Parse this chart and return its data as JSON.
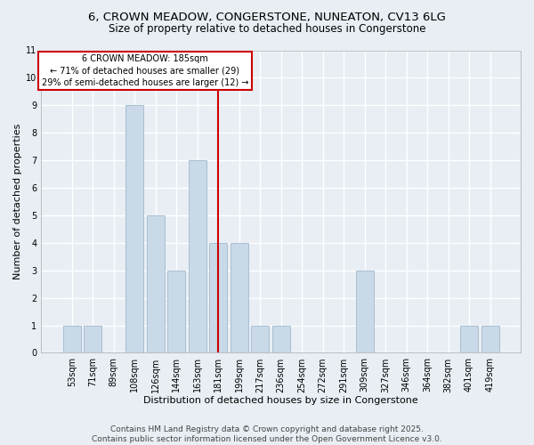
{
  "title1": "6, CROWN MEADOW, CONGERSTONE, NUNEATON, CV13 6LG",
  "title2": "Size of property relative to detached houses in Congerstone",
  "xlabel": "Distribution of detached houses by size in Congerstone",
  "ylabel": "Number of detached properties",
  "categories": [
    "53sqm",
    "71sqm",
    "89sqm",
    "108sqm",
    "126sqm",
    "144sqm",
    "163sqm",
    "181sqm",
    "199sqm",
    "217sqm",
    "236sqm",
    "254sqm",
    "272sqm",
    "291sqm",
    "309sqm",
    "327sqm",
    "346sqm",
    "364sqm",
    "382sqm",
    "401sqm",
    "419sqm"
  ],
  "values": [
    1,
    1,
    0,
    9,
    5,
    3,
    7,
    4,
    4,
    1,
    1,
    0,
    0,
    0,
    3,
    0,
    0,
    0,
    0,
    1,
    1
  ],
  "bar_color": "#c9d9e8",
  "bar_edge_color": "#a0b8cc",
  "highlight_index": 7,
  "highlight_line_color": "#cc0000",
  "annotation_text": "6 CROWN MEADOW: 185sqm\n← 71% of detached houses are smaller (29)\n29% of semi-detached houses are larger (12) →",
  "annotation_box_color": "#ffffff",
  "annotation_box_edge": "#cc0000",
  "ylim": [
    0,
    11
  ],
  "yticks": [
    0,
    1,
    2,
    3,
    4,
    5,
    6,
    7,
    8,
    9,
    10,
    11
  ],
  "bg_color": "#e8eef4",
  "grid_color": "#ffffff",
  "footer": "Contains HM Land Registry data © Crown copyright and database right 2025.\nContains public sector information licensed under the Open Government Licence v3.0.",
  "title1_fontsize": 9.5,
  "title2_fontsize": 8.5,
  "footer_fontsize": 6.5,
  "axis_fontsize": 8,
  "tick_fontsize": 7,
  "annot_fontsize": 7
}
